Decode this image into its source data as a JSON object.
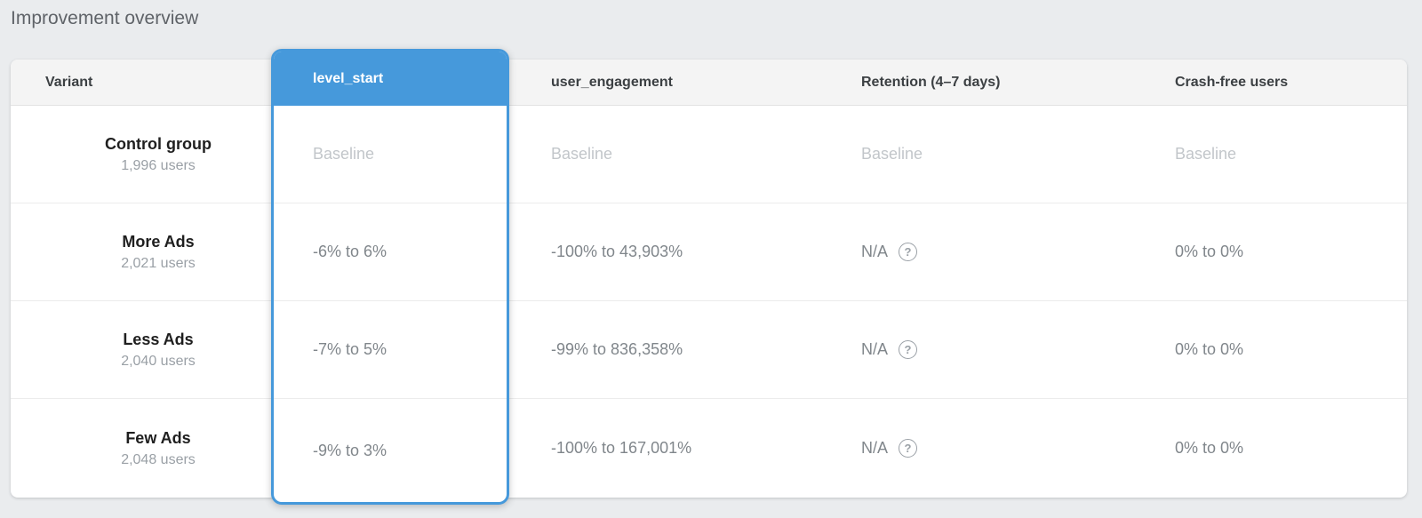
{
  "page": {
    "title": "Improvement overview",
    "background_color": "#eaecee",
    "accent_blue": "#4699db"
  },
  "table": {
    "help_icon": "?",
    "columns": [
      {
        "id": "variant",
        "label": "Variant",
        "selected": false
      },
      {
        "id": "level_start",
        "label": "level_start",
        "selected": true
      },
      {
        "id": "user_engagement",
        "label": "user_engagement",
        "selected": false
      },
      {
        "id": "retention",
        "label": "Retention (4–7 days)",
        "selected": false
      },
      {
        "id": "crash_free",
        "label": "Crash-free users",
        "selected": false
      }
    ],
    "rows": [
      {
        "variant": "Control group",
        "users": "1,996 users",
        "level_start": "Baseline",
        "user_engagement": "Baseline",
        "retention": "Baseline",
        "crash_free": "Baseline",
        "is_baseline": true
      },
      {
        "variant": "More Ads",
        "users": "2,021 users",
        "level_start": "-6% to 6%",
        "user_engagement": "-100% to 43,903%",
        "retention": "N/A",
        "crash_free": "0% to 0%",
        "is_baseline": false
      },
      {
        "variant": "Less Ads",
        "users": "2,040 users",
        "level_start": "-7% to 5%",
        "user_engagement": "-99% to 836,358%",
        "retention": "N/A",
        "crash_free": "0% to 0%",
        "is_baseline": false
      },
      {
        "variant": "Few Ads",
        "users": "2,048 users",
        "level_start": "-9% to 3%",
        "user_engagement": "-100% to 167,001%",
        "retention": "N/A",
        "crash_free": "0% to 0%",
        "is_baseline": false
      }
    ]
  }
}
